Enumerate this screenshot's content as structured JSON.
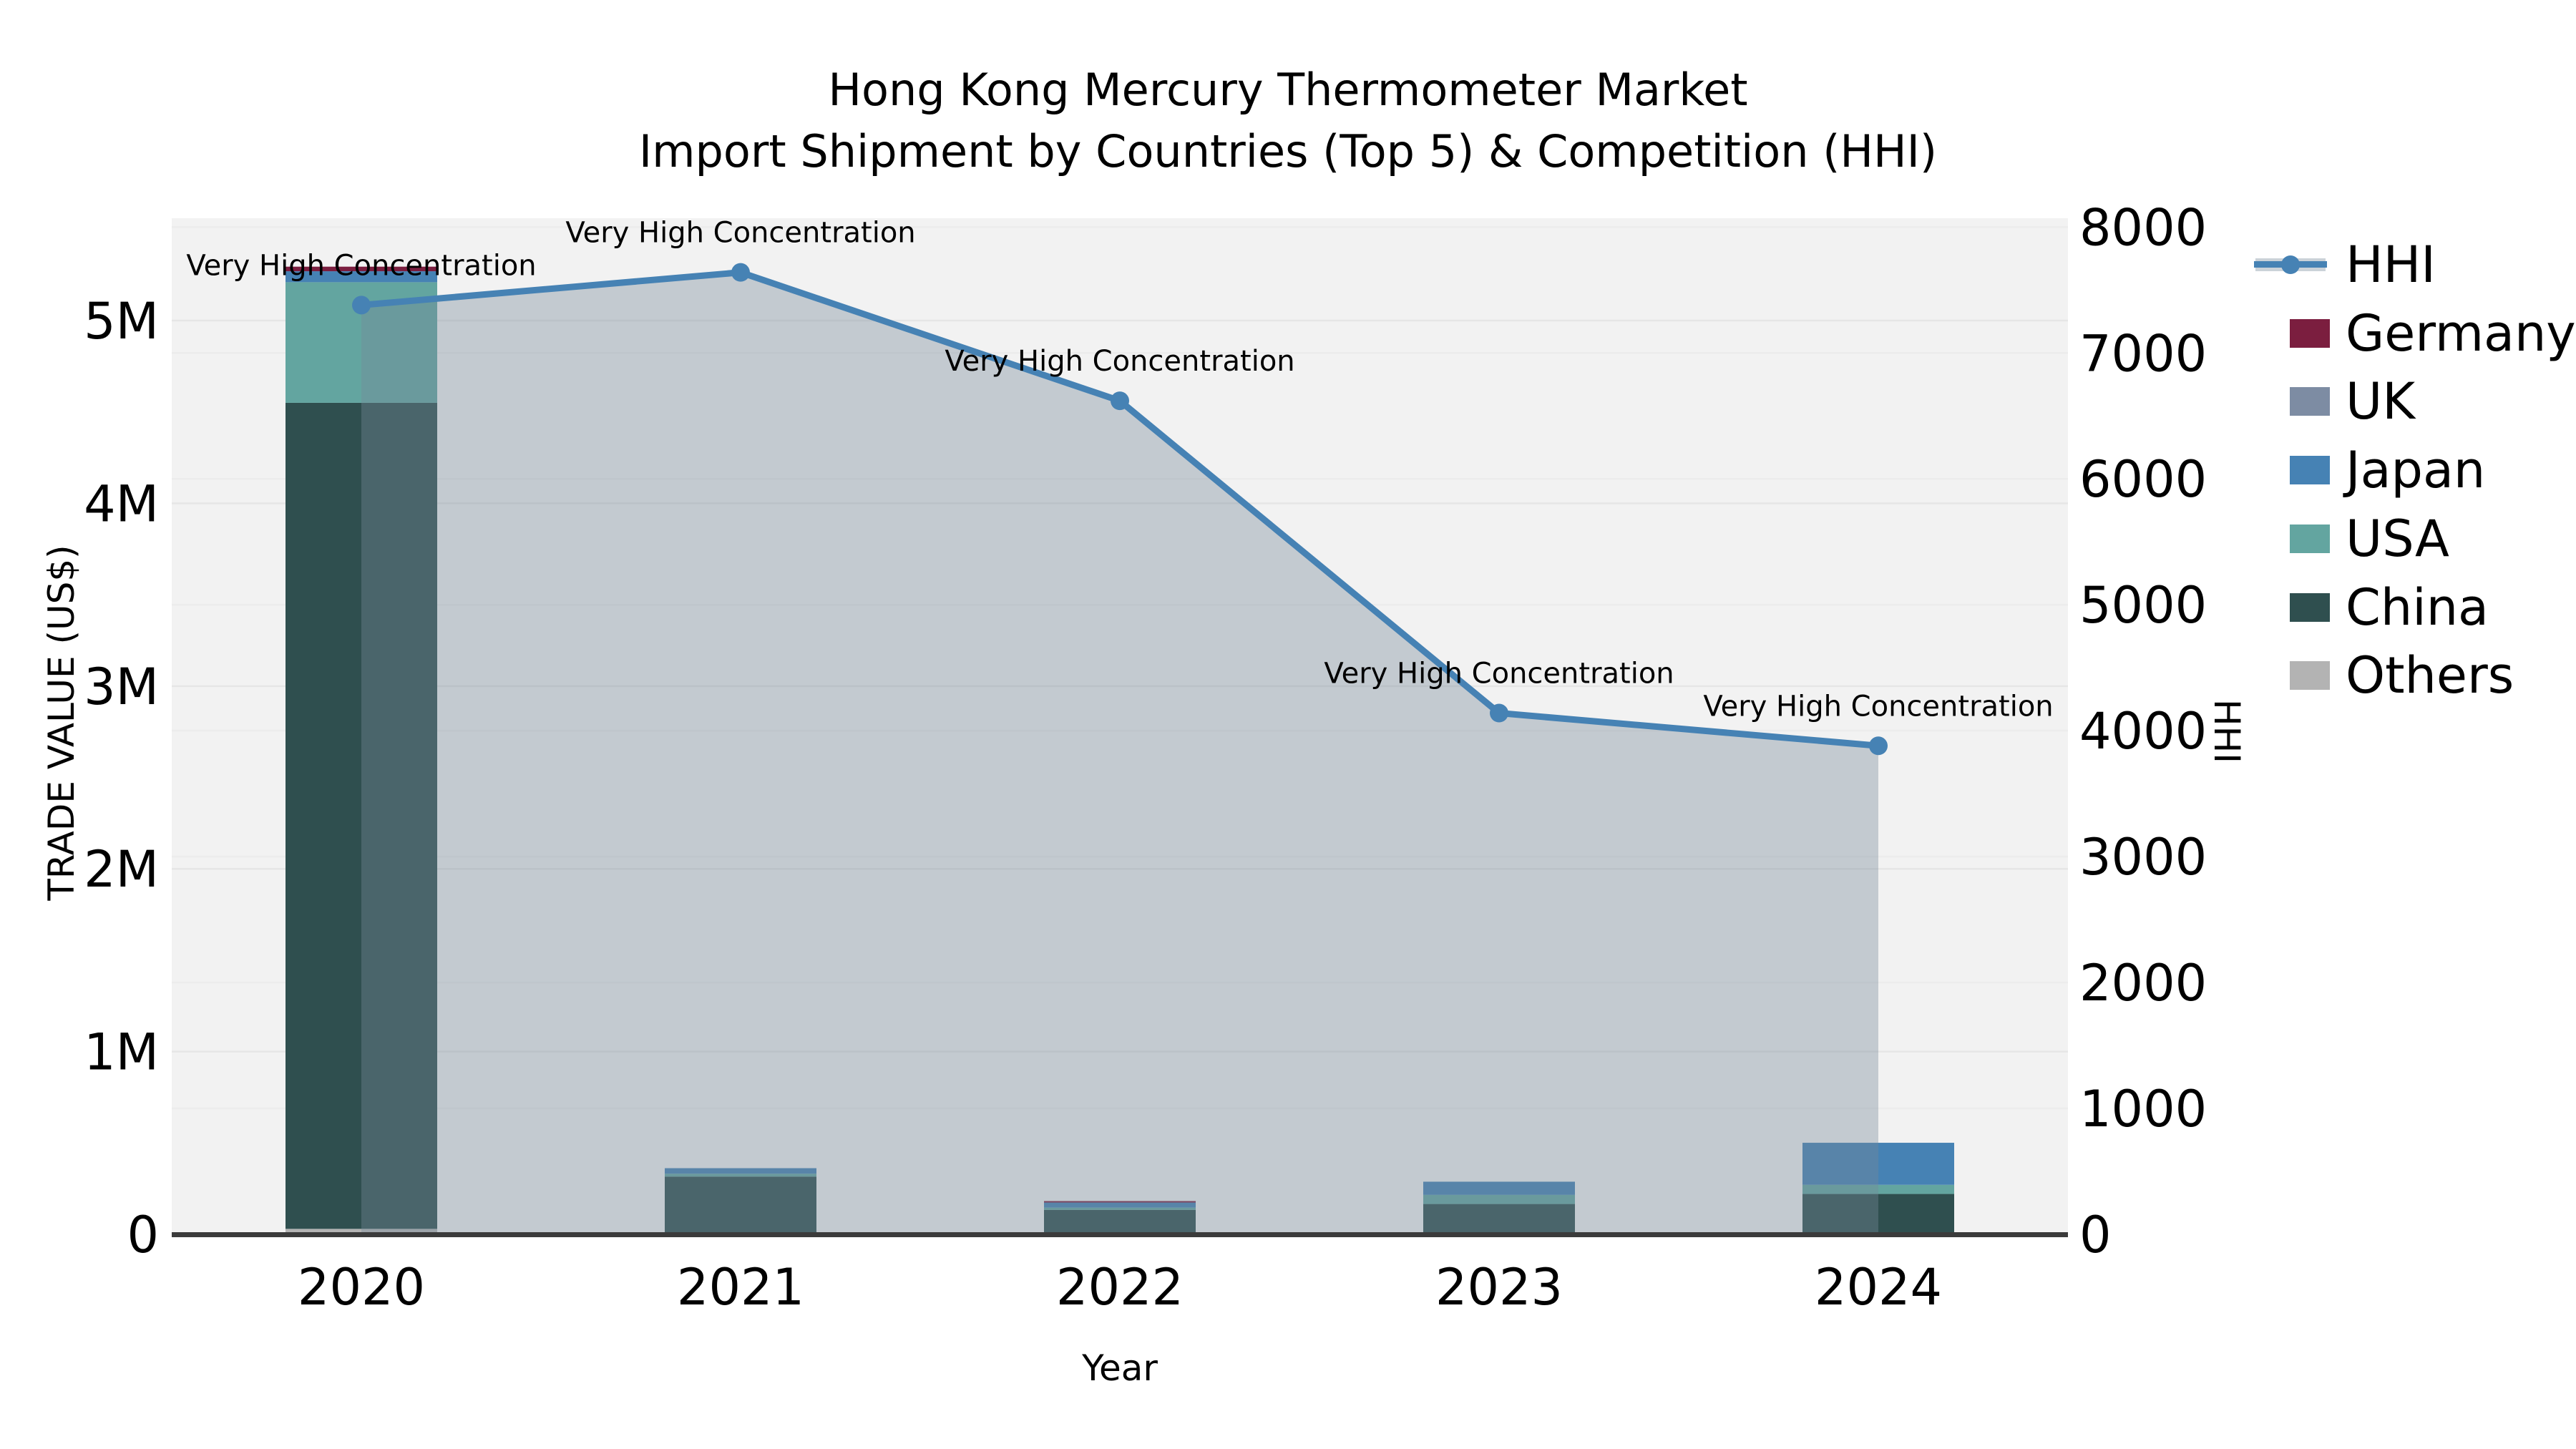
{
  "title": {
    "line1": "Hong Kong Mercury Thermometer Market",
    "line2": "Import Shipment by Countries (Top 5) & Competition (HHI)"
  },
  "axes": {
    "left": {
      "label": "TRADE VALUE (US$)",
      "ticks": [
        {
          "label": "0",
          "value": 0
        },
        {
          "label": "1M",
          "value": 1000000
        },
        {
          "label": "2M",
          "value": 2000000
        },
        {
          "label": "3M",
          "value": 3000000
        },
        {
          "label": "4M",
          "value": 4000000
        },
        {
          "label": "5M",
          "value": 5000000
        }
      ]
    },
    "right": {
      "label": "HHI",
      "ticks": [
        {
          "label": "0",
          "value": 0
        },
        {
          "label": "1000",
          "value": 1000
        },
        {
          "label": "2000",
          "value": 2000
        },
        {
          "label": "3000",
          "value": 3000
        },
        {
          "label": "4000",
          "value": 4000
        },
        {
          "label": "5000",
          "value": 5000
        },
        {
          "label": "6000",
          "value": 6000
        },
        {
          "label": "7000",
          "value": 7000
        },
        {
          "label": "8000",
          "value": 8000
        }
      ]
    },
    "x": {
      "label": "Year"
    }
  },
  "legend": {
    "items": [
      {
        "label": "HHI",
        "swatch": "line-area",
        "color": "#4682b4"
      },
      {
        "label": "Germany",
        "swatch": "box",
        "color": "#7b1e3f"
      },
      {
        "label": "UK",
        "swatch": "box",
        "color": "#7d8ca3"
      },
      {
        "label": "Japan",
        "swatch": "box",
        "color": "#4682b4"
      },
      {
        "label": "USA",
        "swatch": "box",
        "color": "#63a5a0"
      },
      {
        "label": "China",
        "swatch": "box",
        "color": "#2f4f4f"
      },
      {
        "label": "Others",
        "swatch": "box",
        "color": "#b3b3b3"
      }
    ]
  },
  "chart_data": {
    "type": "bar+line",
    "title": "Hong Kong Mercury Thermometer Market",
    "subtitle": "Import Shipment by Countries (Top 5) & Competition (HHI)",
    "categories": [
      "2020",
      "2021",
      "2022",
      "2023",
      "2024"
    ],
    "xlabel": "Year",
    "ylabel_left": "TRADE VALUE (US$)",
    "ylabel_right": "HHI",
    "ylim_left": [
      0,
      5560000
    ],
    "ylim_right": [
      0,
      8070
    ],
    "grid": true,
    "legend_position": "right",
    "bar_stack_order_bottom_to_top": [
      "Others",
      "China",
      "USA",
      "Japan",
      "UK",
      "Germany"
    ],
    "series": [
      {
        "name": "Others",
        "color": "#b3b3b3",
        "values": [
          30000,
          6000,
          4000,
          6000,
          6000
        ]
      },
      {
        "name": "China",
        "color": "#2f4f4f",
        "values": [
          4520000,
          310000,
          130000,
          160000,
          215000
        ]
      },
      {
        "name": "USA",
        "color": "#63a5a0",
        "values": [
          660000,
          16000,
          12000,
          50000,
          50000
        ]
      },
      {
        "name": "Japan",
        "color": "#4682b4",
        "values": [
          60000,
          30000,
          28000,
          72000,
          230000
        ]
      },
      {
        "name": "UK",
        "color": "#7d8ca3",
        "values": [
          0,
          0,
          0,
          0,
          0
        ]
      },
      {
        "name": "Germany",
        "color": "#7b1e3f",
        "values": [
          25000,
          0,
          8000,
          0,
          0
        ]
      }
    ],
    "line_series": {
      "name": "HHI",
      "axis": "right",
      "color": "#4682b4",
      "area_fill": "rgba(119,136,153,0.38)",
      "values": [
        7380,
        7640,
        6620,
        4140,
        3880
      ]
    },
    "annotations": [
      {
        "category": "2020",
        "text": "Very High Concentration"
      },
      {
        "category": "2021",
        "text": "Very High Concentration"
      },
      {
        "category": "2022",
        "text": "Very High Concentration"
      },
      {
        "category": "2023",
        "text": "Very High Concentration"
      },
      {
        "category": "2024",
        "text": "Very High Concentration"
      }
    ]
  },
  "style": {
    "plot_bg": "#f2f2f2",
    "grid_color_major": "#e6e6e6",
    "grid_color_minor": "#ececec",
    "spine_color": "#3b3b3b",
    "annotation_color": "#000000"
  }
}
